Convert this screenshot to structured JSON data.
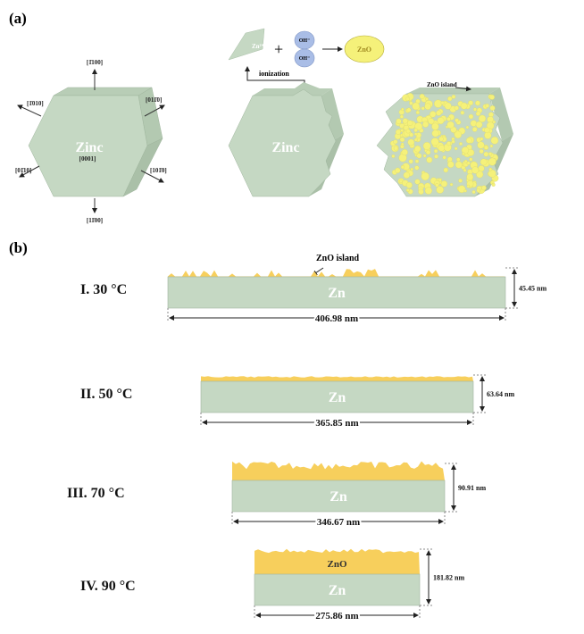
{
  "panel_a": {
    "label": "(a)",
    "crystal": {
      "name": "Zinc",
      "face": "[0001]",
      "directions": [
        "[1̄100]",
        "[1̄010]",
        "[011̄0]",
        "[01̄10]",
        "[101̄0]",
        "[11̄00]"
      ]
    },
    "reaction": {
      "ion": "Zn²⁺",
      "plus": "+",
      "hydroxide": "OH⁻",
      "product": "ZnO",
      "step": "ionization",
      "crystal_name": "Zinc"
    },
    "island_label": "ZnO island"
  },
  "panel_b": {
    "label": "(b)",
    "island_label": "ZnO island",
    "substrate": "Zn",
    "oxide": "ZnO",
    "samples": [
      {
        "label": "I. 30 °C",
        "width": "406.98 nm",
        "height": "45.45 nm"
      },
      {
        "label": "II. 50 °C",
        "width": "365.85 nm",
        "height": "63.64 nm"
      },
      {
        "label": "III. 70 °C",
        "width": "346.67 nm",
        "height": "90.91 nm"
      },
      {
        "label": "IV. 90 °C",
        "width": "275.86 nm",
        "height": "181.82 nm"
      }
    ]
  },
  "colors": {
    "zinc": "#c5d8c3",
    "zinc_side": "#b3c9b1",
    "zno": "#f7cf5c",
    "zno_particle": "#f5f17a",
    "hydroxide": "#a9bde6"
  }
}
